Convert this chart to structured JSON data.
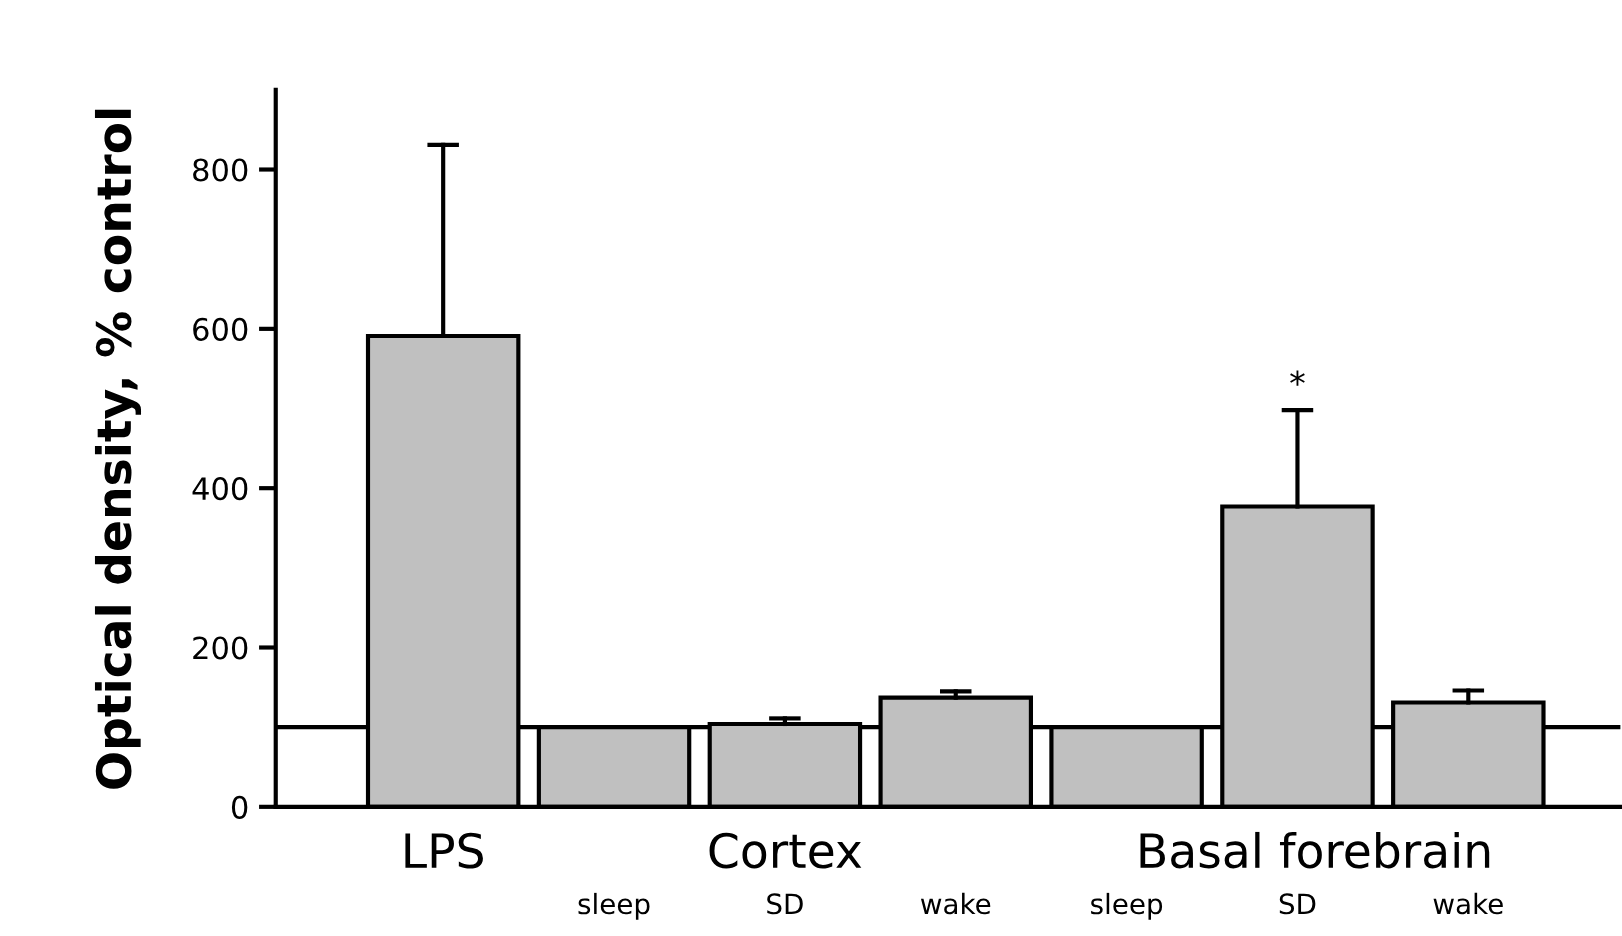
{
  "chart_data": {
    "type": "bar",
    "ylabel": "Optical density, % control",
    "categories": [
      "LPS",
      "sleep",
      "SD",
      "wake",
      "sleep",
      "SD",
      "wake"
    ],
    "values": [
      591,
      100,
      104,
      137,
      100,
      377,
      131
    ],
    "errors": [
      [
        591,
        831
      ],
      null,
      [
        104,
        111
      ],
      [
        137,
        145
      ],
      null,
      [
        377,
        498
      ],
      [
        131,
        146
      ]
    ],
    "color": "#c0c0c0",
    "ylim": [
      0,
      900
    ],
    "yticks": [
      0,
      200,
      400,
      600,
      800
    ],
    "ref_lines": [
      {
        "axis": "y",
        "value": 100,
        "color": "#000000"
      }
    ],
    "annotations": [
      "Cortex",
      "Basal forebrain",
      "*"
    ],
    "grid": false
  }
}
